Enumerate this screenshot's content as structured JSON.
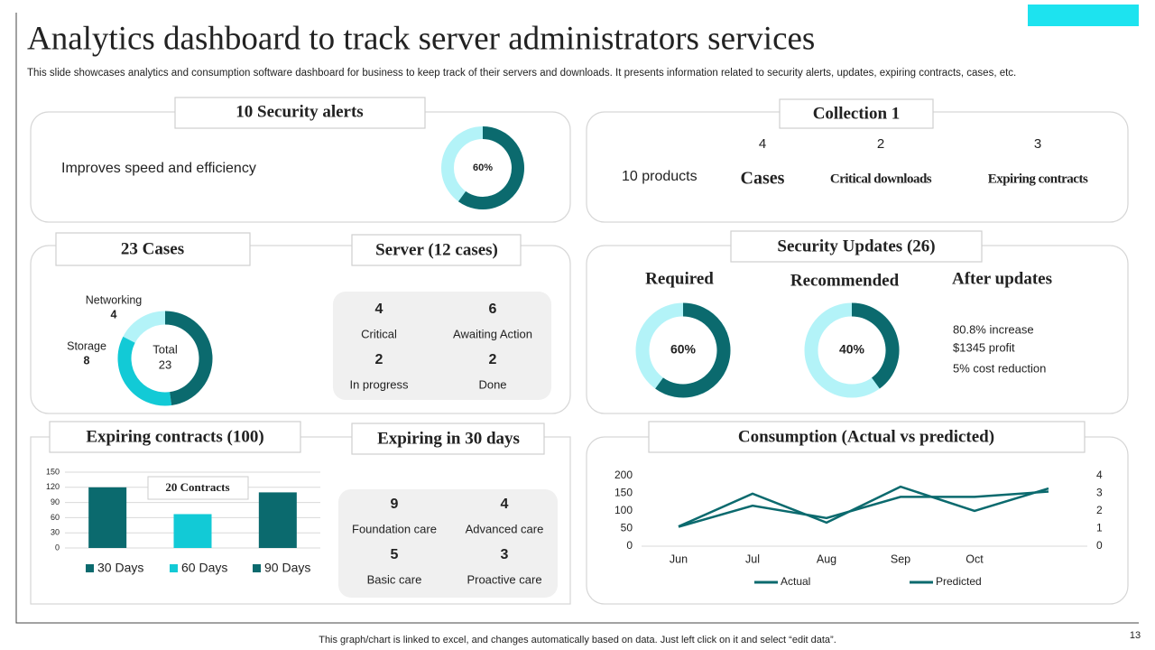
{
  "title": "Analytics dashboard to track server administrators services",
  "subtitle": "This slide showcases analytics and consumption software dashboard for business to keep track of their servers and downloads. It presents information related to security alerts, updates, expiring contracts, cases, etc.",
  "footer": "This graph/chart is linked to excel, and changes automatically based on data. Just left click on it and select “edit data”.",
  "page_number": "13",
  "panels": {
    "security_alerts": {
      "heading": "10 Security alerts",
      "text": "Improves speed and efficiency"
    },
    "collection": {
      "heading": "Collection 1",
      "products": "10 products",
      "items": [
        {
          "count": 4,
          "label": "Cases"
        },
        {
          "count": 2,
          "label": "Critical downloads"
        },
        {
          "count": 3,
          "label": "Expiring contracts"
        }
      ]
    },
    "cases": {
      "heading": "23 Cases",
      "center_label": "Total",
      "center_value": 23
    },
    "server": {
      "heading": "Server (12 cases)",
      "items": [
        {
          "count": 4,
          "label": "Critical"
        },
        {
          "count": 6,
          "label": "Awaiting Action"
        },
        {
          "count": 2,
          "label": "In progress"
        },
        {
          "count": 2,
          "label": "Done"
        }
      ]
    },
    "security_updates": {
      "heading": "Security Updates (26)",
      "required": "Required",
      "recommended": "Recommended",
      "after_updates": "After updates",
      "notes": [
        "80.8% increase",
        "$1345 profit",
        "5% cost reduction"
      ]
    },
    "expiring_contracts": {
      "heading": "Expiring contracts (100)"
    },
    "expiring_30": {
      "heading": "Expiring in 30 days",
      "items": [
        {
          "count": 9,
          "label": "Foundation care"
        },
        {
          "count": 4,
          "label": "Advanced care"
        },
        {
          "count": 5,
          "label": "Basic care"
        },
        {
          "count": 3,
          "label": "Proactive care"
        }
      ]
    },
    "consumption": {
      "heading": "Consumption (Actual vs predicted)"
    }
  },
  "chart_data": [
    {
      "type": "donut",
      "values": [
        60
      ],
      "value_labels": [
        "60%"
      ],
      "color": "#0b6a6e",
      "track_color": "#b3f3f8"
    },
    {
      "type": "donut",
      "categories": [
        "Networking",
        "Storage",
        null
      ],
      "values": [
        4,
        8,
        11
      ],
      "colors": [
        "#b3f3f8",
        "#12cad6",
        "#0b6a6e"
      ]
    },
    {
      "type": "donut",
      "values": [
        60
      ],
      "value_labels": [
        "60%"
      ],
      "color": "#0b6a6e",
      "track_color": "#b3f3f8"
    },
    {
      "type": "donut",
      "values": [
        40
      ],
      "value_labels": [
        "40%"
      ],
      "color": "#0b6a6e",
      "track_color": "#b3f3f8"
    },
    {
      "type": "bar",
      "categories": [
        null
      ],
      "annotation": "20 Contracts",
      "series": [
        {
          "name": "30 Days",
          "color": "#0b6a6e",
          "values": [
            120
          ]
        },
        {
          "name": "60 Days",
          "color": "#12cad6",
          "values": [
            67
          ]
        },
        {
          "name": "90 Days",
          "color": "#0b6a6e",
          "values": [
            110
          ]
        }
      ],
      "ylim": [
        0,
        150
      ],
      "yticks": [
        0,
        30,
        60,
        90,
        120,
        150
      ],
      "grid": true,
      "legend": "bottom"
    },
    {
      "type": "line",
      "categories": [
        "Jun",
        "Jul",
        "Aug",
        "Sep",
        "Oct",
        null
      ],
      "series": [
        {
          "name": "Actual",
          "color": "#0b6a6e",
          "values": [
            56,
            149,
            67,
            169,
            100,
            164
          ]
        },
        {
          "name": "Predicted",
          "color": "#0b6a6e",
          "axis": "y2",
          "values": [
            1.1,
            2.3,
            1.6,
            2.8,
            2.8,
            3.1
          ]
        }
      ],
      "ylim": [
        0,
        200
      ],
      "yticks": [
        0,
        50,
        100,
        150,
        200
      ],
      "y2lim": [
        0,
        4
      ],
      "y2ticks": [
        0,
        1,
        2,
        3,
        4
      ],
      "grid": false,
      "legend": "bottom"
    }
  ]
}
